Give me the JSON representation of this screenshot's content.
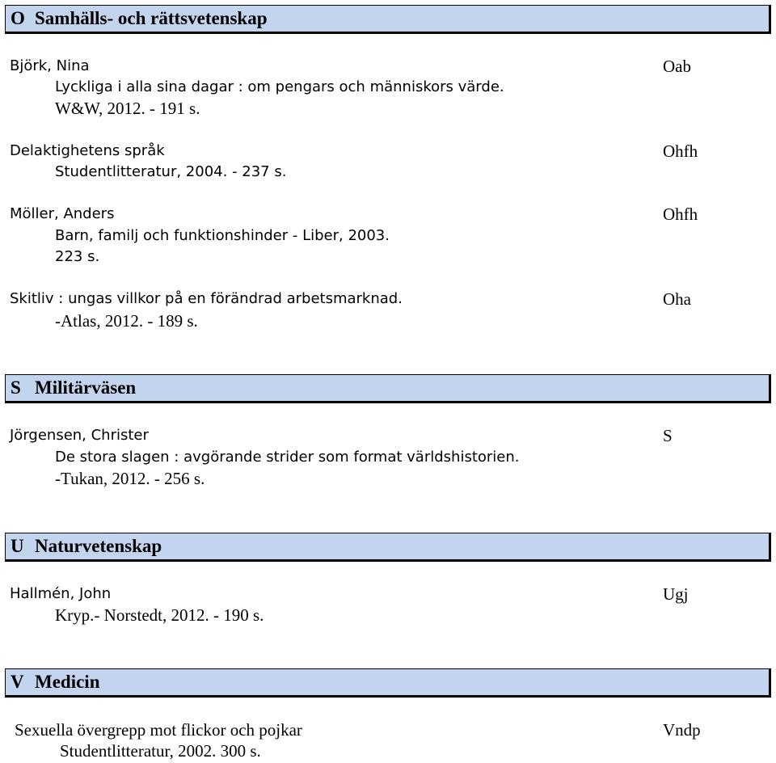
{
  "sections": [
    {
      "code": "O",
      "title": "Samhälls- och rättsvetenskap",
      "entries": [
        {
          "author": "Björk, Nina",
          "shelf": "Oab",
          "lines": [
            "Lyckliga i alla sina dagar : om pengars och människors värde.",
            "W&W, 2012. - 191 s."
          ]
        },
        {
          "author": "Delaktighetens språk",
          "shelf": "Ohfh",
          "lines": [
            "Studentlitteratur, 2004. - 237 s."
          ]
        },
        {
          "author": "Möller, Anders",
          "shelf": "Ohfh",
          "lines": [
            "Barn, familj och funktionshinder - Liber, 2003.",
            "223 s."
          ]
        },
        {
          "author": "Skitliv : ungas villkor på en förändrad arbetsmarknad.",
          "shelf": "Oha",
          "lines": [
            "-Atlas, 2012. - 189 s."
          ]
        }
      ]
    },
    {
      "code": "S",
      "title": "Militärväsen",
      "entries": [
        {
          "author": "Jörgensen, Christer",
          "shelf": "S",
          "lines": [
            "De stora slagen : avgörande strider som format världshistorien.",
            "-Tukan, 2012. - 256 s."
          ]
        }
      ]
    },
    {
      "code": "U",
      "title": "Naturvetenskap",
      "entries": [
        {
          "author": "Hallmén, John",
          "shelf": "Ugj",
          "lines": [
            "Kryp.- Norstedt, 2012. - 190 s."
          ]
        }
      ]
    },
    {
      "code": "V",
      "title": "Medicin",
      "entries": [
        {
          "author": "Sexuella övergrepp mot flickor och pojkar",
          "shelf": "Vndp",
          "lines": [
            "Studentlitteratur, 2002. 300 s."
          ]
        }
      ]
    }
  ]
}
